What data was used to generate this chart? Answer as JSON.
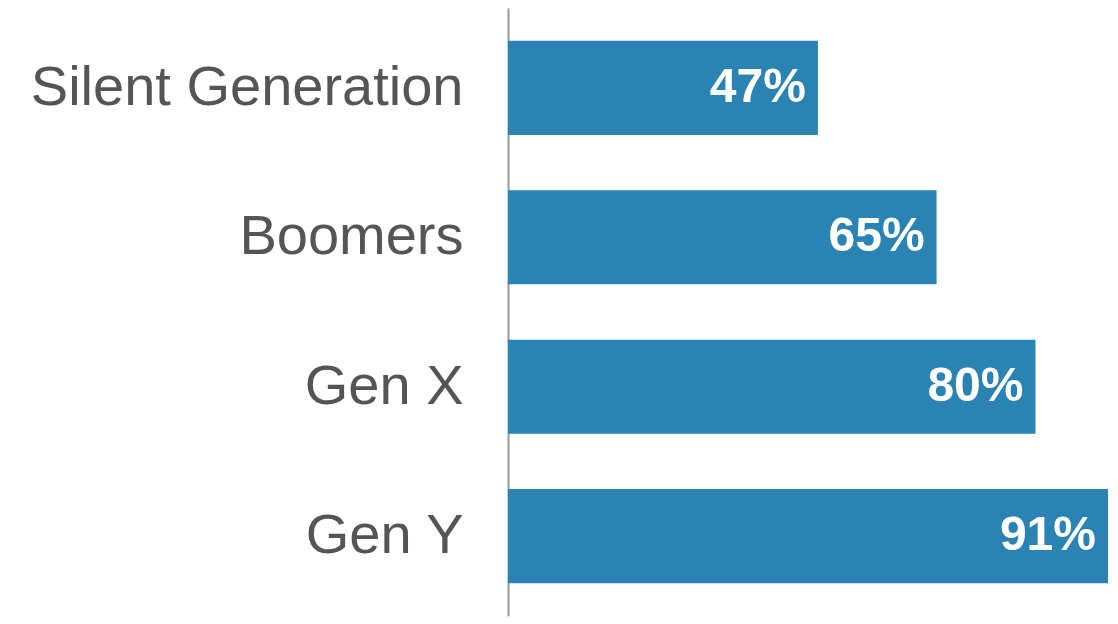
{
  "chart_data": {
    "type": "bar",
    "orientation": "horizontal",
    "categories": [
      "Silent Generation",
      "Boomers",
      "Gen X",
      "Gen Y"
    ],
    "values": [
      47,
      65,
      80,
      91
    ],
    "value_labels": [
      "47%",
      "65%",
      "80%",
      "91%"
    ],
    "color": "#2a83b3",
    "grid": false
  }
}
